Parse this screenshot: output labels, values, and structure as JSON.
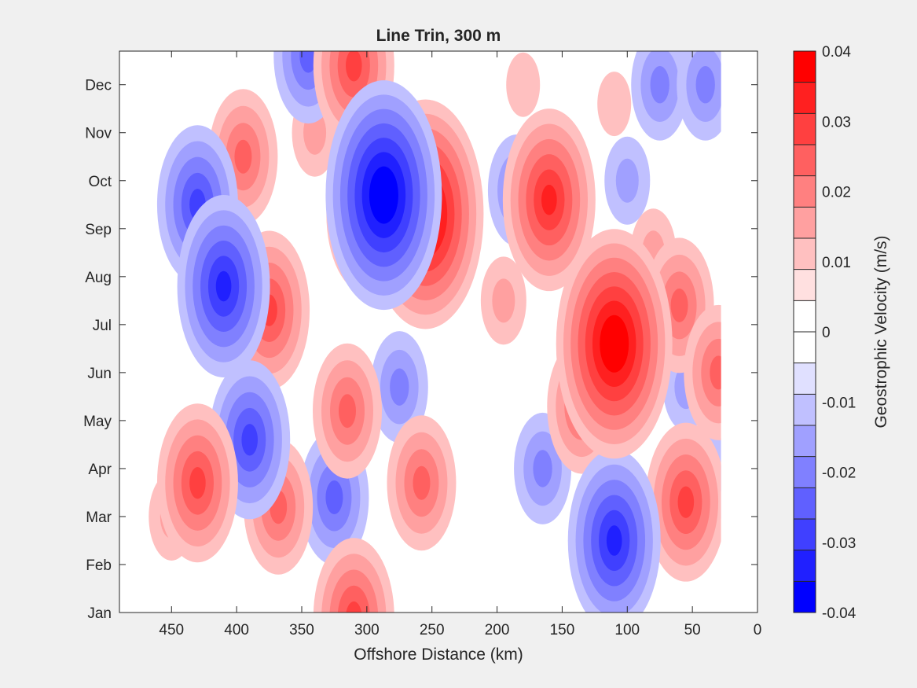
{
  "chart_data": {
    "type": "heatmap",
    "subtype": "filled-contour",
    "title": "Line Trin, 300 m",
    "xlabel": "Offshore Distance (km)",
    "ylabel": "",
    "x_axis_reversed": true,
    "xlim": [
      0,
      490
    ],
    "xticks": [
      450,
      400,
      350,
      300,
      250,
      200,
      150,
      100,
      50,
      0
    ],
    "ylim": [
      1,
      12.7
    ],
    "yticks": [
      1,
      2,
      3,
      4,
      5,
      6,
      7,
      8,
      9,
      10,
      11,
      12
    ],
    "ytick_labels": [
      "Jan",
      "Feb",
      "Mar",
      "Apr",
      "May",
      "Jun",
      "Jul",
      "Aug",
      "Sep",
      "Oct",
      "Nov",
      "Dec"
    ],
    "data_x_range": [
      28,
      490
    ],
    "grid": false,
    "colorbar": {
      "label": "Geostrophic Velocity (m/s)",
      "limits": [
        -0.04,
        0.04
      ],
      "ticks": [
        0.04,
        0.03,
        0.02,
        0.01,
        0,
        -0.01,
        -0.02,
        -0.03,
        -0.04
      ],
      "tick_labels": [
        "0.04",
        "0.03",
        "0.02",
        "0.01",
        "0",
        "-0.01",
        "-0.02",
        "-0.03",
        "-0.04"
      ],
      "levels": [
        -0.04,
        -0.035,
        -0.03,
        -0.025,
        -0.02,
        -0.015,
        -0.01,
        -0.005,
        0,
        0.005,
        0.01,
        0.015,
        0.02,
        0.025,
        0.03,
        0.035,
        0.04
      ],
      "colors": [
        "#0000ff",
        "#2020ff",
        "#4040ff",
        "#6060ff",
        "#8080ff",
        "#a0a0ff",
        "#c0c0ff",
        "#e0e0ff",
        "#ffffff",
        "#ffffff",
        "#ffe0e0",
        "#ffc0c0",
        "#ffa0a0",
        "#ff8080",
        "#ff6060",
        "#ff4040",
        "#ff2020",
        "#ff0000"
      ]
    },
    "features": [
      {
        "x": 255,
        "y": 9.3,
        "value": 0.04
      },
      {
        "x": 110,
        "y": 6.6,
        "value": 0.04
      },
      {
        "x": 287,
        "y": 9.7,
        "value": -0.04
      },
      {
        "x": 310,
        "y": 12.4,
        "value": 0.025
      },
      {
        "x": 300,
        "y": 9.3,
        "value": 0.025
      },
      {
        "x": 160,
        "y": 9.6,
        "value": 0.03
      },
      {
        "x": 375,
        "y": 7.3,
        "value": 0.025
      },
      {
        "x": 395,
        "y": 10.5,
        "value": 0.02
      },
      {
        "x": 340,
        "y": 11.0,
        "value": 0.01
      },
      {
        "x": 430,
        "y": 9.5,
        "value": -0.025
      },
      {
        "x": 410,
        "y": 7.8,
        "value": -0.03
      },
      {
        "x": 345,
        "y": 12.6,
        "value": -0.02
      },
      {
        "x": 390,
        "y": 4.6,
        "value": -0.025
      },
      {
        "x": 325,
        "y": 3.4,
        "value": -0.02
      },
      {
        "x": 275,
        "y": 5.7,
        "value": -0.015
      },
      {
        "x": 110,
        "y": 2.5,
        "value": -0.03
      },
      {
        "x": 185,
        "y": 9.8,
        "value": -0.015
      },
      {
        "x": 100,
        "y": 10.0,
        "value": -0.01
      },
      {
        "x": 75,
        "y": 12.0,
        "value": -0.015
      },
      {
        "x": 40,
        "y": 12.0,
        "value": -0.015
      },
      {
        "x": 165,
        "y": 4.0,
        "value": -0.015
      },
      {
        "x": 55,
        "y": 5.7,
        "value": -0.01
      },
      {
        "x": 35,
        "y": 3.8,
        "value": -0.01
      },
      {
        "x": 430,
        "y": 3.7,
        "value": 0.025
      },
      {
        "x": 368,
        "y": 3.2,
        "value": 0.02
      },
      {
        "x": 315,
        "y": 5.2,
        "value": 0.02
      },
      {
        "x": 258,
        "y": 3.7,
        "value": 0.02
      },
      {
        "x": 55,
        "y": 3.3,
        "value": 0.025
      },
      {
        "x": 60,
        "y": 7.4,
        "value": 0.02
      },
      {
        "x": 30,
        "y": 6.0,
        "value": 0.02
      },
      {
        "x": 135,
        "y": 5.3,
        "value": 0.02
      },
      {
        "x": 310,
        "y": 0.9,
        "value": 0.025
      },
      {
        "x": 195,
        "y": 7.5,
        "value": 0.01
      },
      {
        "x": 180,
        "y": 12.0,
        "value": 0.005
      },
      {
        "x": 110,
        "y": 11.6,
        "value": 0.005
      },
      {
        "x": 450,
        "y": 3.0,
        "value": 0.01
      },
      {
        "x": 80,
        "y": 8.5,
        "value": 0.01
      }
    ]
  }
}
